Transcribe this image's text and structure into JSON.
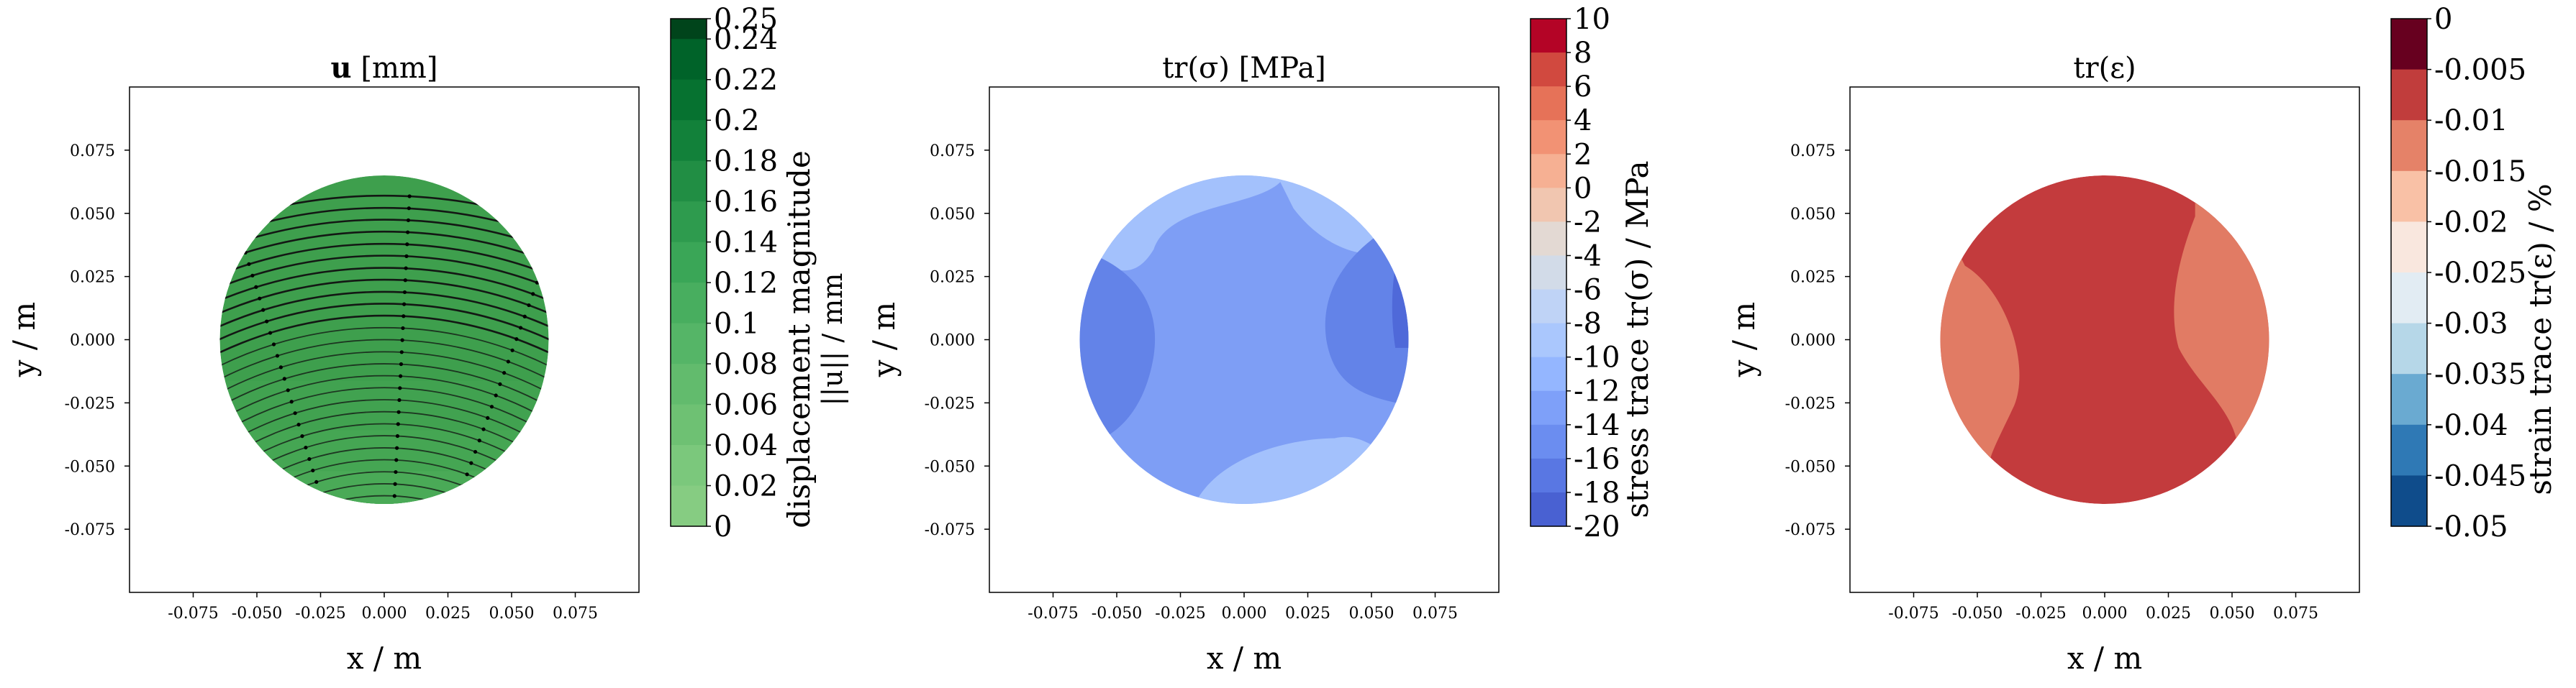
{
  "chart_data": [
    {
      "type": "contour",
      "title": "u [mm]",
      "title_bold_part": "u",
      "title_rest": " [mm]",
      "xlabel": "x / m",
      "ylabel": "y / m",
      "xlim": [
        -0.1,
        0.1
      ],
      "ylim": [
        -0.1,
        0.1
      ],
      "x_ticks": [
        "-0.075",
        "-0.050",
        "-0.025",
        "0.000",
        "0.025",
        "0.050",
        "0.075"
      ],
      "y_ticks": [
        "0.075",
        "0.050",
        "0.025",
        "0.000",
        "-0.025",
        "-0.050",
        "-0.075"
      ],
      "domain": "disk, radius 0.065 m centred at origin",
      "field": "displacement magnitude",
      "overlay": "streamlines with arrows (displacement direction)",
      "colorbar": {
        "label_line1": "displacement magnitude",
        "label_line2": "||u|| / mm",
        "levels": [
          "0.25",
          "0.24",
          "0.22",
          "0.2",
          "0.18",
          "0.16",
          "0.14",
          "0.12",
          "0.1",
          "0.08",
          "0.06",
          "0.04",
          "0.02",
          "0"
        ],
        "level_values": [
          0.25,
          0.24,
          0.22,
          0.2,
          0.18,
          0.16,
          0.14,
          0.12,
          0.1,
          0.08,
          0.06,
          0.04,
          0.02,
          0
        ],
        "colors": [
          "#00441b",
          "#006329",
          "#067230",
          "#12813a",
          "#218e44",
          "#2e9b4e",
          "#3aa657",
          "#48ae5f",
          "#55b567",
          "#62bb6d",
          "#6ec173",
          "#7bc87c",
          "#86cc82"
        ]
      },
      "disk_colors": [
        "#3e9f4d",
        "#41a250",
        "#45a653",
        "#4aaa57"
      ]
    },
    {
      "type": "contour",
      "title": "tr(σ) [MPa]",
      "xlabel": "x / m",
      "ylabel": "y / m",
      "xlim": [
        -0.1,
        0.1
      ],
      "ylim": [
        -0.1,
        0.1
      ],
      "x_ticks": [
        "-0.075",
        "-0.050",
        "-0.025",
        "0.000",
        "0.025",
        "0.050",
        "0.075"
      ],
      "y_ticks": [
        "0.075",
        "0.050",
        "0.025",
        "0.000",
        "-0.025",
        "-0.050",
        "-0.075"
      ],
      "field": "stress trace",
      "colorbar": {
        "label": "stress trace tr(σ) / MPa",
        "levels": [
          "10",
          "8",
          "6",
          "4",
          "2",
          "0",
          "-2",
          "-4",
          "-6",
          "-8",
          "-10",
          "-12",
          "-14",
          "-16",
          "-18",
          "-20"
        ],
        "level_values": [
          10,
          8,
          6,
          4,
          2,
          0,
          -2,
          -4,
          -6,
          -8,
          -10,
          -12,
          -14,
          -16,
          -18,
          -20
        ],
        "colors": [
          "#b40426",
          "#d1493f",
          "#e67258",
          "#f29274",
          "#f6b093",
          "#f1c6b0",
          "#e3d9d3",
          "#d2dbe8",
          "#bfd3f6",
          "#aac7fd",
          "#94b6ff",
          "#7ea0f9",
          "#6b8df0",
          "#5977e3",
          "#4961d2"
        ]
      },
      "disk_colors": {
        "light_band": "#a3c1fc",
        "mid_band": "#7e9ef5",
        "dark_band": "#6383e8",
        "edge_band": "#4f69d9"
      }
    },
    {
      "type": "contour",
      "title": "tr(ε)",
      "xlabel": "x / m",
      "ylabel": "y / m",
      "xlim": [
        -0.1,
        0.1
      ],
      "ylim": [
        -0.1,
        0.1
      ],
      "x_ticks": [
        "-0.075",
        "-0.050",
        "-0.025",
        "0.000",
        "0.025",
        "0.050",
        "0.075"
      ],
      "y_ticks": [
        "0.075",
        "0.050",
        "0.025",
        "0.000",
        "-0.025",
        "-0.050",
        "-0.075"
      ],
      "field": "strain trace",
      "colorbar": {
        "label": "strain trace tr(ε) / %",
        "levels": [
          "0",
          "-0.005",
          "-0.01",
          "-0.015",
          "-0.02",
          "-0.025",
          "-0.03",
          "-0.035",
          "-0.04",
          "-0.045",
          "-0.05"
        ],
        "level_values": [
          0,
          -0.005,
          -0.01,
          -0.015,
          -0.02,
          -0.025,
          -0.03,
          -0.035,
          -0.04,
          -0.045,
          -0.05
        ],
        "colors": [
          "#67001f",
          "#c13d3c",
          "#e58268",
          "#f9c1a6",
          "#f9e7de",
          "#e2ecf3",
          "#b6d7e8",
          "#6aaad1",
          "#2f79b5",
          "#0f4c8b"
        ]
      },
      "disk_colors": {
        "center": "#c33b3d",
        "sides": "#e17b64"
      }
    }
  ]
}
